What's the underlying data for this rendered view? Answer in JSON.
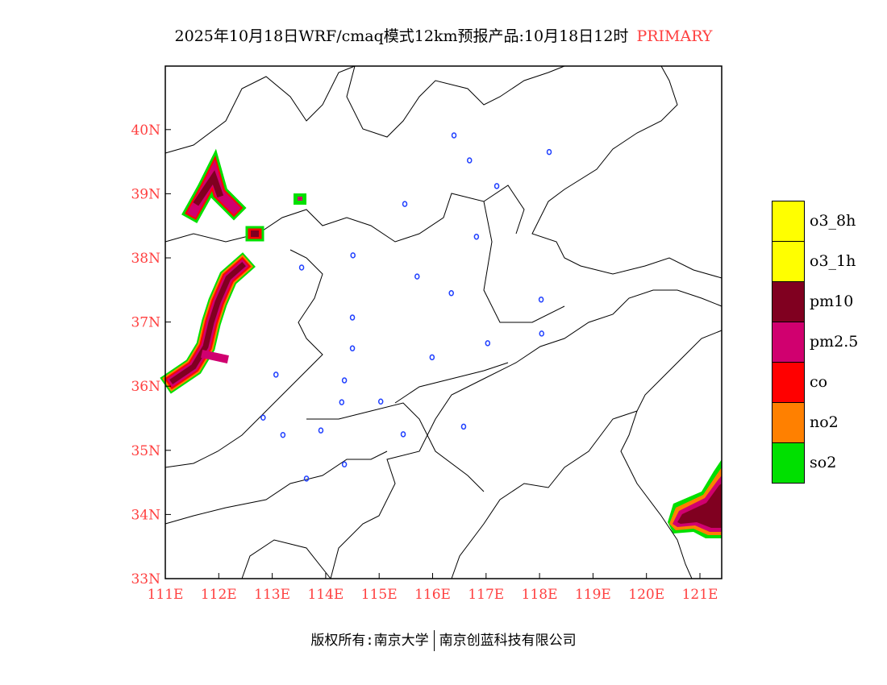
{
  "title": {
    "main": "2025年10月18日WRF/cmaq模式12km预报产品:10月18日12时",
    "tag": "PRIMARY"
  },
  "axes": {
    "lat_labels": [
      "33N",
      "34N",
      "35N",
      "36N",
      "37N",
      "38N",
      "39N",
      "40N"
    ],
    "lon_labels": [
      "111E",
      "112E",
      "113E",
      "114E",
      "115E",
      "116E",
      "117E",
      "118E",
      "119E",
      "120E",
      "121E"
    ],
    "lat_range": [
      33,
      41.0
    ],
    "lon_range": [
      111,
      121.4
    ]
  },
  "colors": {
    "tick": "#ff4040",
    "station": "#2040ff"
  },
  "legend": [
    {
      "label": "o3_8h",
      "color": "#ffff00"
    },
    {
      "label": "o3_1h",
      "color": "#ffff00"
    },
    {
      "label": "pm10",
      "color": "#800020"
    },
    {
      "label": "pm2.5",
      "color": "#d0006f"
    },
    {
      "label": "co",
      "color": "#ff0000"
    },
    {
      "label": "no2",
      "color": "#ff8000"
    },
    {
      "label": "so2",
      "color": "#00e000"
    }
  ],
  "stations": [
    [
      116.4,
      39.91
    ],
    [
      116.69,
      39.52
    ],
    [
      118.18,
      39.65
    ],
    [
      117.2,
      39.12
    ],
    [
      115.48,
      38.84
    ],
    [
      116.82,
      38.33
    ],
    [
      113.55,
      37.85
    ],
    [
      114.51,
      38.04
    ],
    [
      115.71,
      37.71
    ],
    [
      116.35,
      37.45
    ],
    [
      118.03,
      37.35
    ],
    [
      114.5,
      37.07
    ],
    [
      118.04,
      36.82
    ],
    [
      117.03,
      36.67
    ],
    [
      114.5,
      36.59
    ],
    [
      115.99,
      36.45
    ],
    [
      113.07,
      36.18
    ],
    [
      114.35,
      36.09
    ],
    [
      115.03,
      35.76
    ],
    [
      114.3,
      35.75
    ],
    [
      112.83,
      35.51
    ],
    [
      116.58,
      35.37
    ],
    [
      113.2,
      35.24
    ],
    [
      113.91,
      35.31
    ],
    [
      115.45,
      35.25
    ],
    [
      114.35,
      34.78
    ],
    [
      113.64,
      34.56
    ]
  ],
  "footer": {
    "left": "版权所有:南京大学",
    "right": "南京创蓝科技有限公司"
  }
}
